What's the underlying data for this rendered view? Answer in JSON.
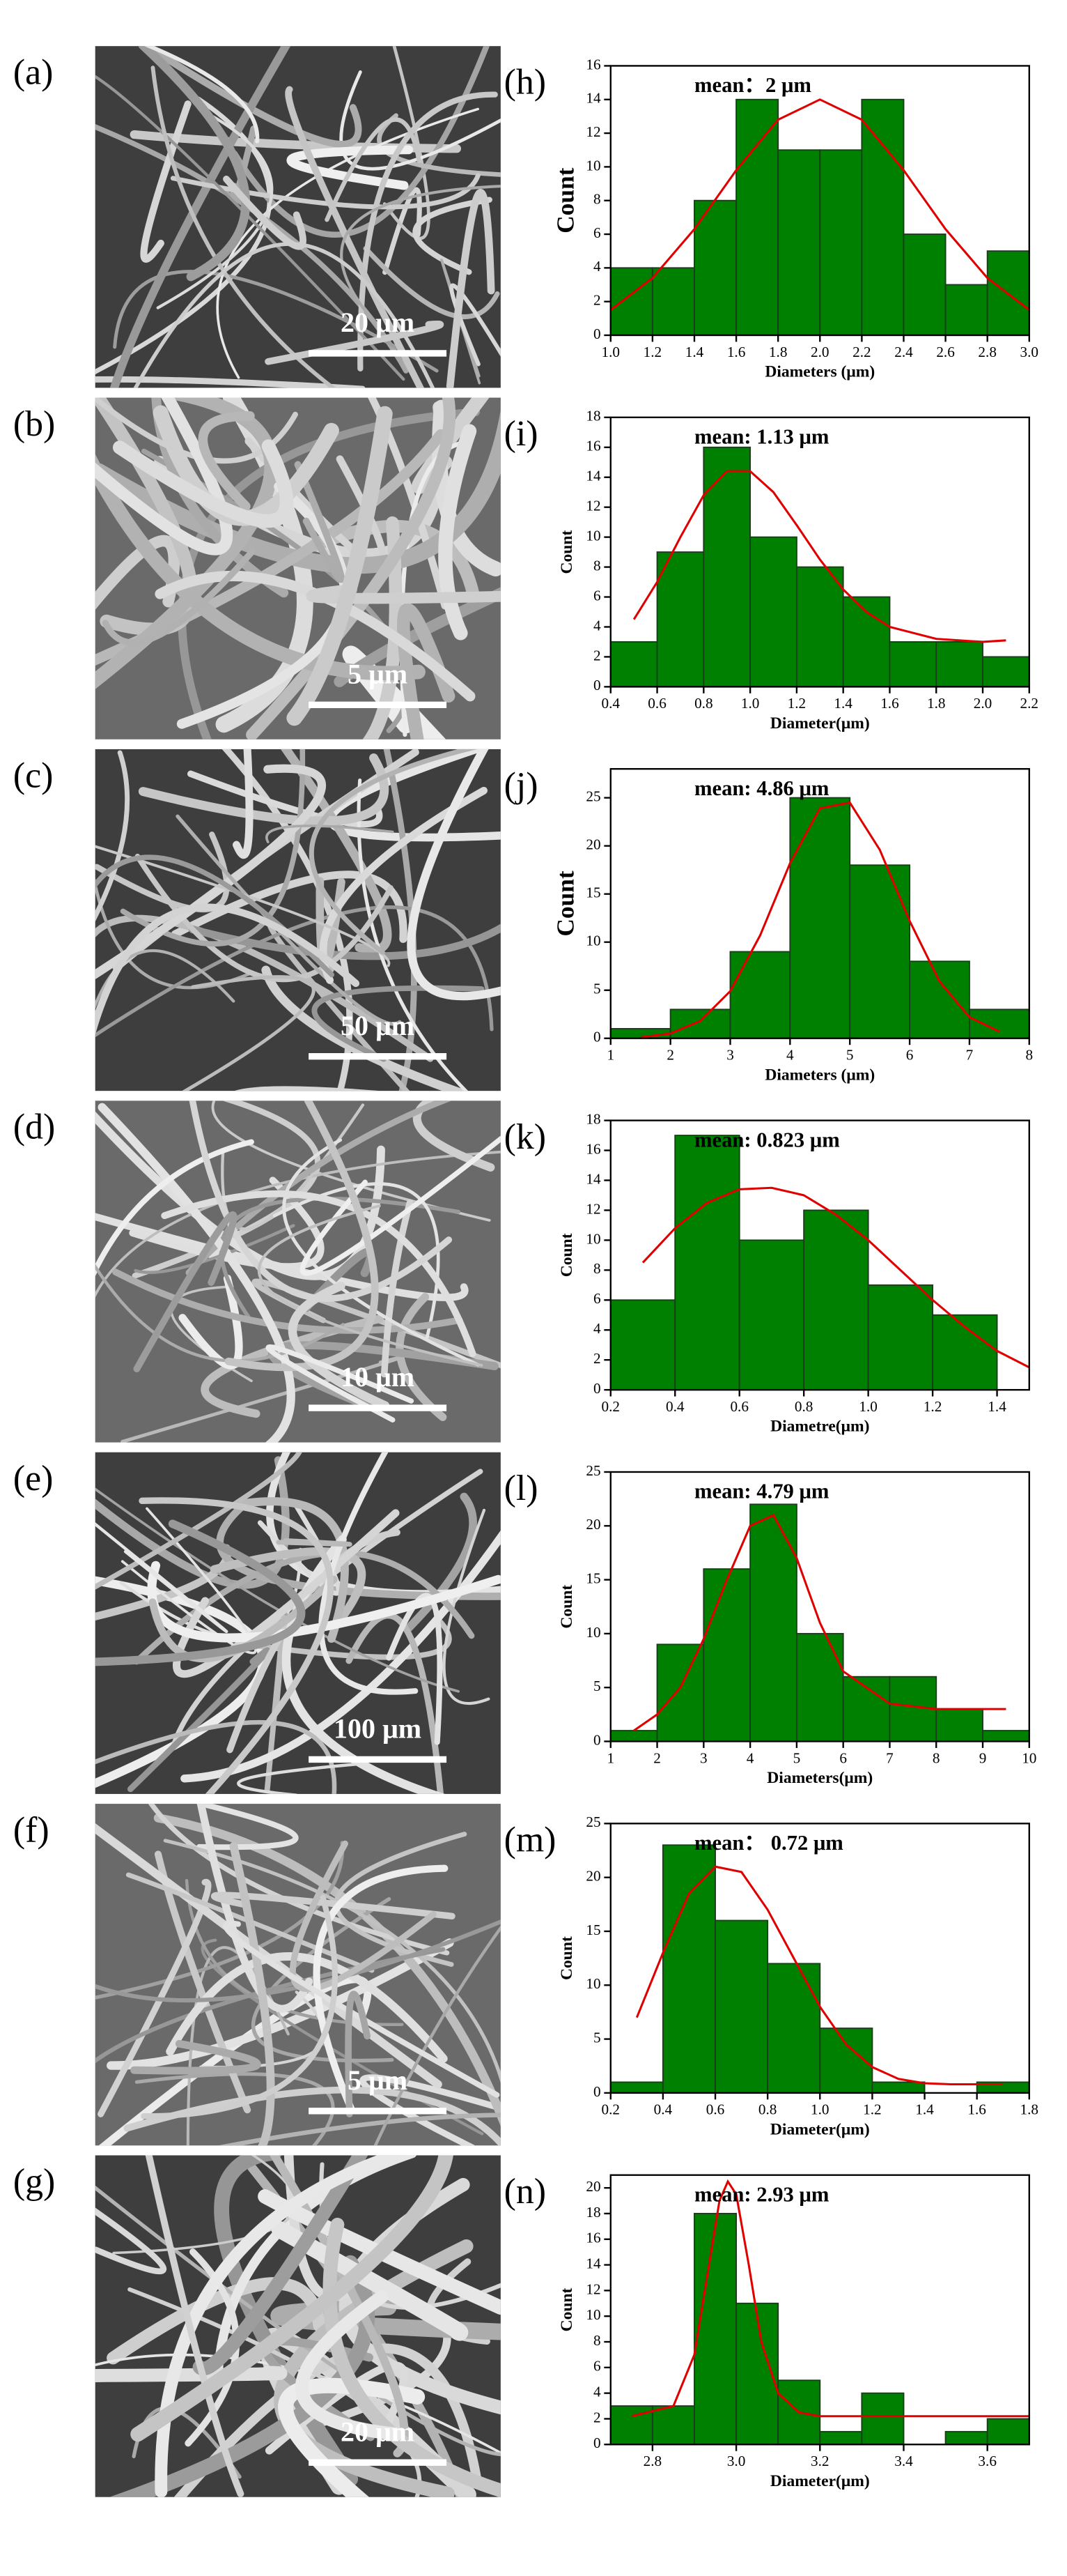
{
  "images": [
    {
      "label": "(a)",
      "scale_bar": "20 μm"
    },
    {
      "label": "(b)",
      "scale_bar": "5 μm"
    },
    {
      "label": "(c)",
      "scale_bar": "50 μm"
    },
    {
      "label": "(d)",
      "scale_bar": "10 μm"
    },
    {
      "label": "(e)",
      "scale_bar": "100 μm"
    },
    {
      "label": "(f)",
      "scale_bar": "5 μm"
    },
    {
      "label": "(g)",
      "scale_bar": "20 μm"
    }
  ],
  "chart_data": [
    {
      "type": "histogram",
      "label": "(h)",
      "annotation": "mean：2 μm",
      "xlabel": "Diameters (μm)",
      "ylabel": "Count",
      "color": "#008000",
      "bins": [
        1.0,
        1.2,
        1.4,
        1.6,
        1.8,
        2.0,
        2.2,
        2.4,
        2.6,
        2.8,
        3.0
      ],
      "counts": [
        4,
        4,
        8,
        14,
        11,
        11,
        14,
        6,
        3,
        5
      ],
      "xlim": [
        1.0,
        3.0
      ],
      "xticks": [
        {
          "value": 1,
          "label": "1.0"
        },
        1.2,
        1.4,
        1.6,
        1.8,
        {
          "value": 2,
          "label": "2.0"
        },
        2.2,
        2.4,
        2.6,
        2.8,
        {
          "value": 3,
          "label": "3.0"
        }
      ],
      "ylim": [
        0,
        16
      ],
      "yticks": [
        0,
        2,
        4,
        6,
        8,
        10,
        12,
        14,
        16
      ],
      "fit": {
        "color": "#e00000",
        "x": [
          1.0,
          1.2,
          1.4,
          1.6,
          1.8,
          2.0,
          2.2,
          2.4,
          2.6,
          2.8,
          3.0
        ],
        "y": [
          1.5,
          3.4,
          6.3,
          9.8,
          12.8,
          14,
          12.8,
          9.8,
          6.3,
          3.4,
          1.5
        ]
      }
    },
    {
      "type": "histogram",
      "label": "(i)",
      "annotation": "mean: 1.13 μm",
      "xlabel": "Diameter(μm)",
      "ylabel": "Count",
      "color": "#008000",
      "bins": [
        0.4,
        0.6,
        0.8,
        1.0,
        1.2,
        1.4,
        1.6,
        1.8,
        2.0,
        2.2
      ],
      "counts": [
        3,
        9,
        16,
        10,
        8,
        6,
        3,
        3,
        2
      ],
      "xlim": [
        0.4,
        2.2
      ],
      "xticks": [
        0.4,
        0.6,
        0.8,
        {
          "value": 1,
          "label": "1.0"
        },
        1.2,
        1.4,
        1.6,
        1.8,
        {
          "value": 2,
          "label": "2.0"
        },
        2.2
      ],
      "ylim": [
        0,
        18
      ],
      "yticks": [
        0,
        2,
        4,
        6,
        8,
        10,
        12,
        14,
        16,
        18
      ],
      "fit": {
        "color": "#e00000",
        "x": [
          0.5,
          0.6,
          0.7,
          0.8,
          0.9,
          1.0,
          1.1,
          1.2,
          1.3,
          1.4,
          1.5,
          1.6,
          1.8,
          2.0,
          2.1
        ],
        "y": [
          4.5,
          7,
          10,
          12.8,
          14.4,
          14.4,
          13,
          10.8,
          8.5,
          6.5,
          5,
          4,
          3.2,
          3,
          3.1
        ]
      }
    },
    {
      "type": "histogram",
      "label": "(j)",
      "annotation": "mean: 4.86 μm",
      "xlabel": "Diameters (μm)",
      "ylabel": "Count",
      "color": "#008000",
      "bins": [
        1,
        2,
        3,
        4,
        5,
        6,
        7,
        8
      ],
      "counts": [
        1,
        3,
        9,
        25,
        18,
        8,
        3
      ],
      "xlim": [
        1,
        8
      ],
      "xticks": [
        1,
        2,
        3,
        4,
        5,
        6,
        7,
        8
      ],
      "ylim": [
        0,
        28
      ],
      "yticks": [
        0,
        5,
        10,
        15,
        20,
        25
      ],
      "fit": {
        "color": "#e00000",
        "x": [
          1.5,
          2,
          2.5,
          3,
          3.5,
          4,
          4.5,
          5,
          5.5,
          6,
          6.5,
          7,
          7.5
        ],
        "y": [
          0.1,
          0.5,
          1.8,
          4.9,
          10.7,
          18.2,
          23.9,
          24.5,
          19.6,
          12.2,
          5.9,
          2.2,
          0.7
        ]
      }
    },
    {
      "type": "histogram",
      "label": "(k)",
      "annotation": "mean:  0.823 μm",
      "xlabel": "Diametre(μm)",
      "ylabel": "Count",
      "color": "#008000",
      "bins": [
        0.2,
        0.4,
        0.6,
        0.8,
        1.0,
        1.2,
        1.4
      ],
      "counts": [
        6,
        17,
        10,
        12,
        7,
        5
      ],
      "xlim": [
        0.2,
        1.5
      ],
      "xticks": [
        0.2,
        0.4,
        0.6,
        0.8,
        {
          "value": 1,
          "label": "1.0"
        },
        1.2,
        1.4
      ],
      "ylim": [
        0,
        18
      ],
      "yticks": [
        0,
        2,
        4,
        6,
        8,
        10,
        12,
        14,
        16,
        18
      ],
      "fit": {
        "color": "#e00000",
        "x": [
          0.3,
          0.4,
          0.5,
          0.6,
          0.7,
          0.8,
          0.9,
          1.0,
          1.1,
          1.2,
          1.3,
          1.4,
          1.5
        ],
        "y": [
          8.5,
          10.8,
          12.5,
          13.4,
          13.5,
          13,
          11.7,
          10,
          8,
          6,
          4.2,
          2.6,
          1.5
        ]
      }
    },
    {
      "type": "histogram",
      "label": "(l)",
      "annotation": "mean: 4.79 μm",
      "xlabel": "Diameters(μm)",
      "ylabel": "Count",
      "color": "#008000",
      "bins": [
        1,
        2,
        3,
        4,
        5,
        6,
        7,
        8,
        9,
        10
      ],
      "counts": [
        1,
        9,
        16,
        22,
        10,
        6,
        6,
        3,
        1
      ],
      "xlim": [
        1,
        10
      ],
      "xticks": [
        1,
        2,
        3,
        4,
        5,
        6,
        7,
        8,
        9,
        10
      ],
      "ylim": [
        0,
        25
      ],
      "yticks": [
        0,
        5,
        10,
        15,
        20,
        25
      ],
      "fit": {
        "color": "#e00000",
        "x": [
          1.5,
          2,
          2.5,
          3,
          3.5,
          4,
          4.5,
          5,
          5.5,
          6,
          7,
          8,
          9,
          9.5
        ],
        "y": [
          1,
          2.5,
          5,
          9.5,
          15,
          20,
          21,
          17,
          11,
          6.5,
          3.5,
          3,
          3,
          3
        ]
      }
    },
    {
      "type": "histogram",
      "label": "(m)",
      "annotation": "mean： 0.72 μm",
      "xlabel": "Diameter(μm)",
      "ylabel": "Count",
      "color": "#008000",
      "bins": [
        0.2,
        0.4,
        0.6,
        0.8,
        1.0,
        1.2,
        1.4,
        1.6,
        1.8
      ],
      "counts": [
        1,
        23,
        16,
        12,
        6,
        1,
        0,
        1
      ],
      "xlim": [
        0.2,
        1.8
      ],
      "xticks": [
        0.2,
        0.4,
        0.6,
        0.8,
        {
          "value": 1,
          "label": "1.0"
        },
        1.2,
        1.4,
        1.6,
        1.8
      ],
      "ylim": [
        0,
        25
      ],
      "yticks": [
        0,
        5,
        10,
        15,
        20,
        25
      ],
      "fit": {
        "color": "#e00000",
        "x": [
          0.3,
          0.4,
          0.5,
          0.6,
          0.7,
          0.8,
          0.9,
          1.0,
          1.1,
          1.2,
          1.3,
          1.4,
          1.5,
          1.6,
          1.7
        ],
        "y": [
          7,
          13,
          18.5,
          21,
          20.5,
          17,
          12.5,
          8,
          4.5,
          2.4,
          1.3,
          0.9,
          0.8,
          0.8,
          0.8
        ]
      }
    },
    {
      "type": "histogram",
      "label": "(n)",
      "annotation": "mean: 2.93 μm",
      "xlabel": "Diameter(μm)",
      "ylabel": "Count",
      "color": "#008000",
      "bins": [
        2.7,
        2.8,
        2.9,
        3.0,
        3.1,
        3.2,
        3.3,
        3.4,
        3.5,
        3.6,
        3.7
      ],
      "counts": [
        3,
        3,
        18,
        11,
        5,
        1,
        4,
        0,
        1,
        2
      ],
      "xlim": [
        2.7,
        3.7
      ],
      "xticks": [
        2.8,
        {
          "value": 3,
          "label": "3.0"
        },
        3.2,
        3.4,
        3.6
      ],
      "ylim": [
        0,
        21
      ],
      "yticks": [
        0,
        2,
        4,
        6,
        8,
        10,
        12,
        14,
        16,
        18,
        20
      ],
      "fit": {
        "color": "#e00000",
        "x": [
          2.75,
          2.85,
          2.9,
          2.93,
          2.96,
          2.98,
          3.0,
          3.03,
          3.06,
          3.1,
          3.15,
          3.2,
          3.4,
          3.6,
          3.7
        ],
        "y": [
          2.2,
          3,
          7,
          13,
          19,
          20.5,
          19.5,
          14,
          8,
          4,
          2.5,
          2.2,
          2.2,
          2.2,
          2.2
        ]
      }
    }
  ]
}
